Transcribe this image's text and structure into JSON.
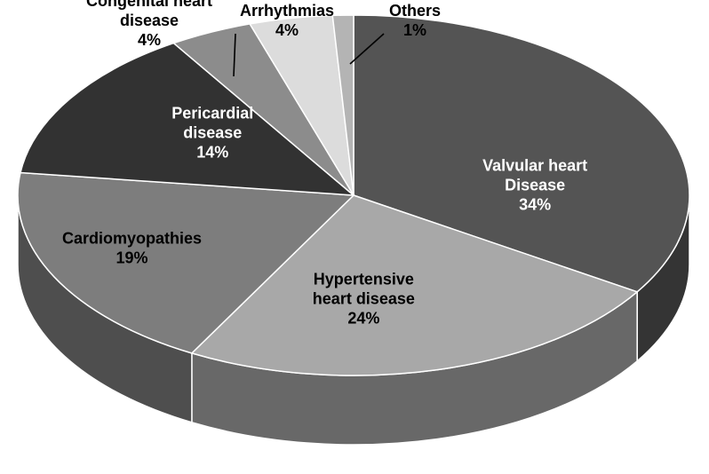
{
  "chart_data": {
    "type": "pie",
    "style": "3d",
    "slices": [
      {
        "label_lines": [
          "Valvular heart",
          "Disease"
        ],
        "percent_label": "34%",
        "value": 34,
        "color": "#545454",
        "label_color": "#ffffff"
      },
      {
        "label_lines": [
          "Hypertensive",
          "heart disease"
        ],
        "percent_label": "24%",
        "value": 24,
        "color": "#a8a8a8",
        "label_color": "#000000"
      },
      {
        "label_lines": [
          "Cardiomyopathies"
        ],
        "percent_label": "19%",
        "value": 19,
        "color": "#7d7d7d",
        "label_color": "#000000"
      },
      {
        "label_lines": [
          "Pericardial",
          "disease"
        ],
        "percent_label": "14%",
        "value": 14,
        "color": "#323232",
        "label_color": "#ffffff"
      },
      {
        "label_lines": [
          "Congenital heart",
          "disease"
        ],
        "percent_label": "4%",
        "value": 4,
        "color": "#8c8c8c",
        "label_color": "#000000"
      },
      {
        "label_lines": [
          "Arrhythmias"
        ],
        "percent_label": "4%",
        "value": 4,
        "color": "#dcdcdc",
        "label_color": "#000000"
      },
      {
        "label_lines": [
          "Others"
        ],
        "percent_label": "1%",
        "value": 1,
        "color": "#b4b4b4",
        "label_color": "#000000"
      }
    ]
  }
}
